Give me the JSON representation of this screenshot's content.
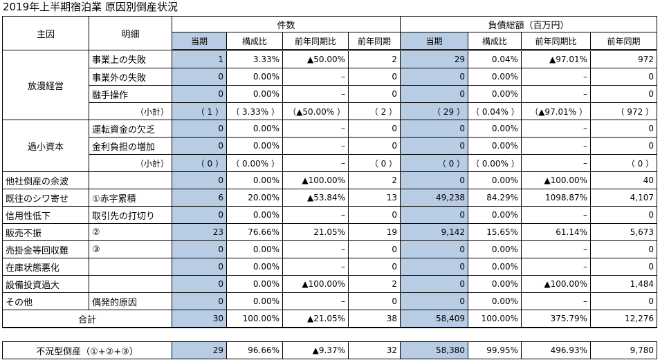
{
  "title": "2019年上半期宿泊業 原因別倒産状況",
  "headers": {
    "main_cause": "主因",
    "detail": "明細",
    "count_group": "件数",
    "debt_group": "負債総額（百万円）",
    "cols": [
      "当期",
      "構成比",
      "前年同期比",
      "前年同期",
      "当期",
      "構成比",
      "前年同期比",
      "前年同期"
    ]
  },
  "groups": {
    "g1": "放漫経営",
    "g2": "過小資本"
  },
  "rows": [
    {
      "cause": "",
      "detail": "事業上の失敗",
      "v": [
        "1",
        "3.33%",
        "▲50.00%",
        "2",
        "29",
        "0.04%",
        "▲97.01%",
        "972"
      ]
    },
    {
      "cause": "",
      "detail": "事業外の失敗",
      "v": [
        "0",
        "0.00%",
        "–",
        "0",
        "0",
        "0.00%",
        "–",
        "0"
      ]
    },
    {
      "cause": "",
      "detail": "融手操作",
      "v": [
        "0",
        "0.00%",
        "–",
        "0",
        "0",
        "0.00%",
        "–",
        "0"
      ]
    },
    {
      "cause": "",
      "detail": "（小計）",
      "v": [
        "（ 1 ）",
        "（ 3.33% ）",
        "（▲50.00% ）",
        "（ 2 ）",
        "（ 29 ）",
        "（ 0.04% ）",
        "（▲97.01% ）",
        "（ 972 ）"
      ]
    },
    {
      "cause": "",
      "detail": "運転資金の欠乏",
      "v": [
        "0",
        "0.00%",
        "–",
        "0",
        "0",
        "0.00%",
        "–",
        "0"
      ]
    },
    {
      "cause": "",
      "detail": "金利負担の増加",
      "v": [
        "0",
        "0.00%",
        "–",
        "0",
        "0",
        "0.00%",
        "–",
        "0"
      ]
    },
    {
      "cause": "",
      "detail": "（小計）",
      "v": [
        "（ 0 ）",
        "（ 0.00% ）",
        "–",
        "（ 0 ）",
        "（ 0 ）",
        "（ 0.00% ）",
        "–",
        "（ 0 ）"
      ]
    },
    {
      "cause": "他社倒産の余波",
      "detail": "",
      "v": [
        "0",
        "0.00%",
        "▲100.00%",
        "2",
        "0",
        "0.00%",
        "▲100.00%",
        "40"
      ]
    },
    {
      "cause": "既往のシワ寄せ",
      "detail": "①赤字累積",
      "v": [
        "6",
        "20.00%",
        "▲53.84%",
        "13",
        "49,238",
        "84.29%",
        "1098.87%",
        "4,107"
      ]
    },
    {
      "cause": "信用性低下",
      "detail": "取引先の打切り",
      "v": [
        "0",
        "0.00%",
        "–",
        "0",
        "0",
        "0.00%",
        "–",
        "0"
      ]
    },
    {
      "cause": "販売不振",
      "detail": "②",
      "v": [
        "23",
        "76.66%",
        "21.05%",
        "19",
        "9,142",
        "15.65%",
        "61.14%",
        "5,673"
      ]
    },
    {
      "cause": "売掛金等回収難",
      "detail": "③",
      "v": [
        "0",
        "0.00%",
        "–",
        "0",
        "0",
        "0.00%",
        "–",
        "0"
      ]
    },
    {
      "cause": "在庫状態悪化",
      "detail": "",
      "v": [
        "0",
        "0.00%",
        "–",
        "0",
        "0",
        "0.00%",
        "–",
        "0"
      ]
    },
    {
      "cause": "設備投資過大",
      "detail": "",
      "v": [
        "0",
        "0.00%",
        "▲100.00%",
        "2",
        "0",
        "0.00%",
        "▲100.00%",
        "1,484"
      ]
    },
    {
      "cause": "その他",
      "detail": "偶発的原因",
      "v": [
        "0",
        "0.00%",
        "–",
        "0",
        "0",
        "0.00%",
        "–",
        "0"
      ]
    }
  ],
  "total": {
    "label": "合計",
    "v": [
      "30",
      "100.00%",
      "▲21.05%",
      "38",
      "58,409",
      "100.00%",
      "375.79%",
      "12,276"
    ]
  },
  "recession": {
    "label": "不況型倒産（①+②+③）",
    "v": [
      "29",
      "96.66%",
      "▲9.37%",
      "32",
      "58,380",
      "99.95%",
      "496.93%",
      "9,780"
    ]
  }
}
